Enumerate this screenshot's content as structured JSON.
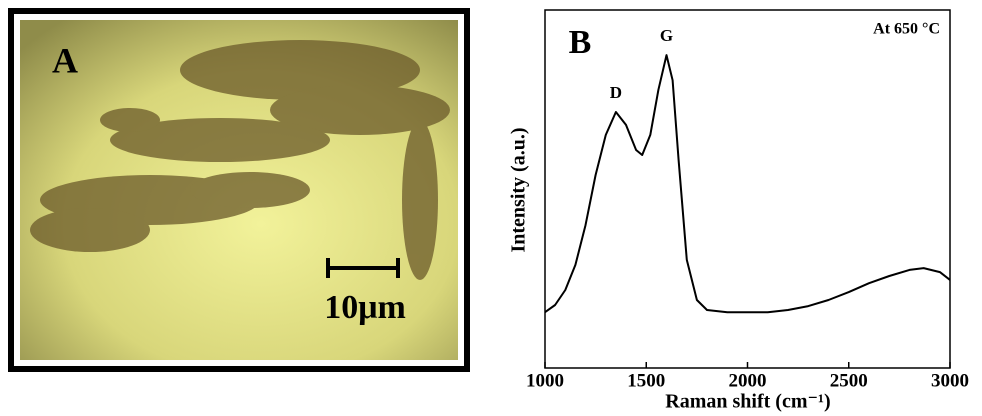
{
  "panel_a": {
    "label": "A",
    "scale_bar": "10μm"
  },
  "chart_data": {
    "type": "line",
    "panel_label": "B",
    "annotation": "At 650 °C",
    "peak_labels": [
      "D",
      "G"
    ],
    "xlabel": "Raman shift (cm⁻¹)",
    "ylabel": "Intensity (a.u.)",
    "x": [
      1000,
      1050,
      1100,
      1150,
      1200,
      1250,
      1300,
      1350,
      1400,
      1450,
      1480,
      1520,
      1560,
      1600,
      1630,
      1660,
      1700,
      1750,
      1800,
      1900,
      2000,
      2100,
      2200,
      2300,
      2400,
      2500,
      2600,
      2700,
      2800,
      2870,
      2950,
      3000
    ],
    "series": [
      {
        "color": "#000000",
        "values": [
          15.6,
          17.6,
          21.8,
          28.8,
          39.9,
          53.9,
          65.1,
          71.5,
          67.9,
          60.9,
          59.5,
          65.1,
          77.7,
          87.4,
          80.4,
          58.1,
          30.2,
          19.0,
          16.2,
          15.6,
          15.6,
          15.6,
          16.2,
          17.3,
          19.0,
          21.2,
          23.7,
          25.7,
          27.4,
          27.9,
          26.8,
          24.6
        ]
      }
    ],
    "xlim": [
      1000,
      3000
    ],
    "ylim": [
      0,
      100
    ],
    "xticks": [
      1000,
      1500,
      2000,
      2500,
      3000
    ]
  }
}
